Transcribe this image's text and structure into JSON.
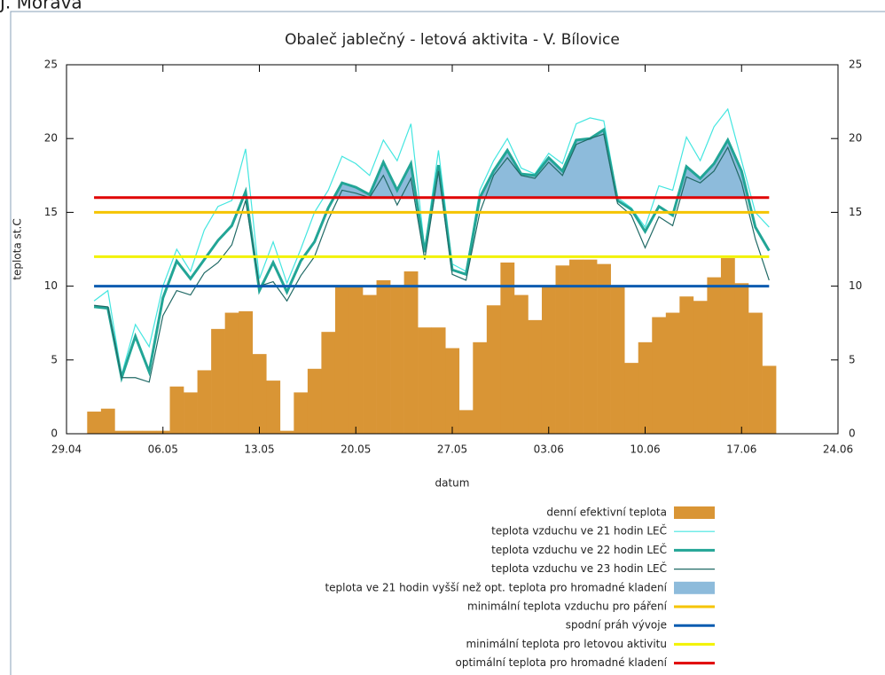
{
  "header": "J. Morava",
  "chart_data": {
    "type": "combo",
    "title": "Obaleč jablečný - letová aktivita - V. Bílovice",
    "x_label": "datum",
    "y_label": "teplota st.C",
    "x": [
      "01.05",
      "02.05",
      "03.05",
      "04.05",
      "05.05",
      "06.05",
      "07.05",
      "08.05",
      "09.05",
      "10.05",
      "11.05",
      "12.05",
      "13.05",
      "14.05",
      "15.05",
      "16.05",
      "17.05",
      "18.05",
      "19.05",
      "20.05",
      "21.05",
      "22.05",
      "23.05",
      "24.05",
      "25.05",
      "26.05",
      "27.05",
      "28.05",
      "29.05",
      "30.05",
      "31.05",
      "01.06",
      "02.06",
      "03.06",
      "04.06",
      "05.06",
      "06.06",
      "07.06",
      "08.06",
      "09.06",
      "10.06",
      "11.06",
      "12.06",
      "13.06",
      "14.06",
      "15.06",
      "16.06",
      "17.06",
      "18.06",
      "19.06"
    ],
    "xlim": [
      "29.04",
      "24.06"
    ],
    "xticks": [
      "29.04",
      "06.05",
      "13.05",
      "20.05",
      "27.05",
      "03.06",
      "10.06",
      "17.06",
      "24.06"
    ],
    "ylim": [
      0,
      25
    ],
    "yticks": [
      0,
      5,
      10,
      15,
      20,
      25
    ],
    "y2lim": [
      0,
      25
    ],
    "y2ticks": [
      0,
      5,
      10,
      15,
      20,
      25
    ],
    "bars": {
      "name": "denní efektivní teplota",
      "color": "#d99535",
      "values": [
        1.5,
        1.7,
        0.2,
        0.2,
        0.2,
        0.2,
        3.2,
        2.8,
        4.3,
        7.1,
        8.2,
        8.3,
        5.4,
        3.6,
        0.2,
        2.8,
        4.4,
        6.9,
        10.0,
        10.0,
        9.4,
        10.4,
        10.0,
        11.0,
        7.2,
        7.2,
        5.8,
        1.6,
        6.2,
        8.7,
        11.6,
        9.4,
        7.7,
        10.0,
        11.4,
        11.8,
        11.8,
        11.5,
        10.0,
        4.8,
        6.2,
        7.9,
        8.2,
        9.3,
        9.0,
        10.6,
        11.9,
        10.2,
        8.2,
        4.6
      ]
    },
    "series": [
      {
        "name": "teplota vzduchu ve 21 hodin LEČ",
        "color": "#44e6e0",
        "width": 1.2,
        "values": [
          9.0,
          9.7,
          4.0,
          7.4,
          5.9,
          10.0,
          12.5,
          11.0,
          13.8,
          15.4,
          15.8,
          19.3,
          10.5,
          13.0,
          10.2,
          12.5,
          15.0,
          16.5,
          18.8,
          18.3,
          17.5,
          19.9,
          18.5,
          21.0,
          12.5,
          19.2,
          11.5,
          11.0,
          16.5,
          18.5,
          20.0,
          18.0,
          17.6,
          19.0,
          18.3,
          21.0,
          21.4,
          21.2,
          16.0,
          15.3,
          14.0,
          16.8,
          16.5,
          20.1,
          18.5,
          20.8,
          22.0,
          18.5,
          15.0,
          14.0
        ]
      },
      {
        "name": "teplota vzduchu ve 22 hodin LEČ",
        "color": "#22a596",
        "width": 3,
        "values": [
          8.6,
          8.5,
          3.8,
          6.6,
          4.2,
          9.2,
          11.7,
          10.5,
          11.8,
          13.1,
          14.1,
          16.4,
          9.7,
          11.6,
          9.6,
          11.7,
          13.0,
          15.3,
          17.0,
          16.7,
          16.2,
          18.4,
          16.5,
          18.3,
          12.3,
          18.2,
          11.1,
          10.8,
          16.0,
          17.8,
          19.2,
          17.6,
          17.5,
          18.7,
          17.8,
          19.9,
          20.0,
          20.6,
          15.8,
          15.2,
          13.7,
          15.4,
          14.8,
          18.1,
          17.3,
          18.3,
          19.9,
          17.8,
          14.0,
          12.4
        ]
      },
      {
        "name": "teplota vzduchu ve 23 hodin LEČ",
        "color": "#216a66",
        "width": 1.2,
        "values": [
          8.7,
          8.6,
          3.8,
          3.8,
          3.5,
          8.0,
          9.7,
          9.4,
          10.9,
          11.6,
          12.8,
          15.8,
          10.0,
          10.3,
          9.0,
          10.7,
          12.0,
          14.5,
          16.5,
          16.3,
          16.0,
          17.5,
          15.5,
          17.3,
          11.8,
          17.8,
          10.8,
          10.4,
          15.0,
          17.5,
          18.7,
          17.5,
          17.3,
          18.4,
          17.5,
          19.6,
          20.0,
          20.3,
          15.6,
          14.8,
          12.6,
          14.7,
          14.1,
          17.4,
          17.0,
          17.8,
          19.4,
          17.0,
          13.2,
          10.4
        ]
      }
    ],
    "fill": {
      "name": "teplota ve 21 hodin vyšší než opt. teplota pro hromadné kladení",
      "color": "#8dbbdb"
    },
    "hlines": [
      {
        "name": "minimální teplota vzduchu pro páření",
        "color": "#f5c400",
        "value": 15
      },
      {
        "name": "spodní práh vývoje",
        "color": "#0b5cb0",
        "value": 10
      },
      {
        "name": "minimální teplota pro letovou aktivitu",
        "color": "#f2f200",
        "value": 12
      },
      {
        "name": "optimální teplota pro hromadné kladení",
        "color": "#e00000",
        "value": 16
      }
    ]
  }
}
